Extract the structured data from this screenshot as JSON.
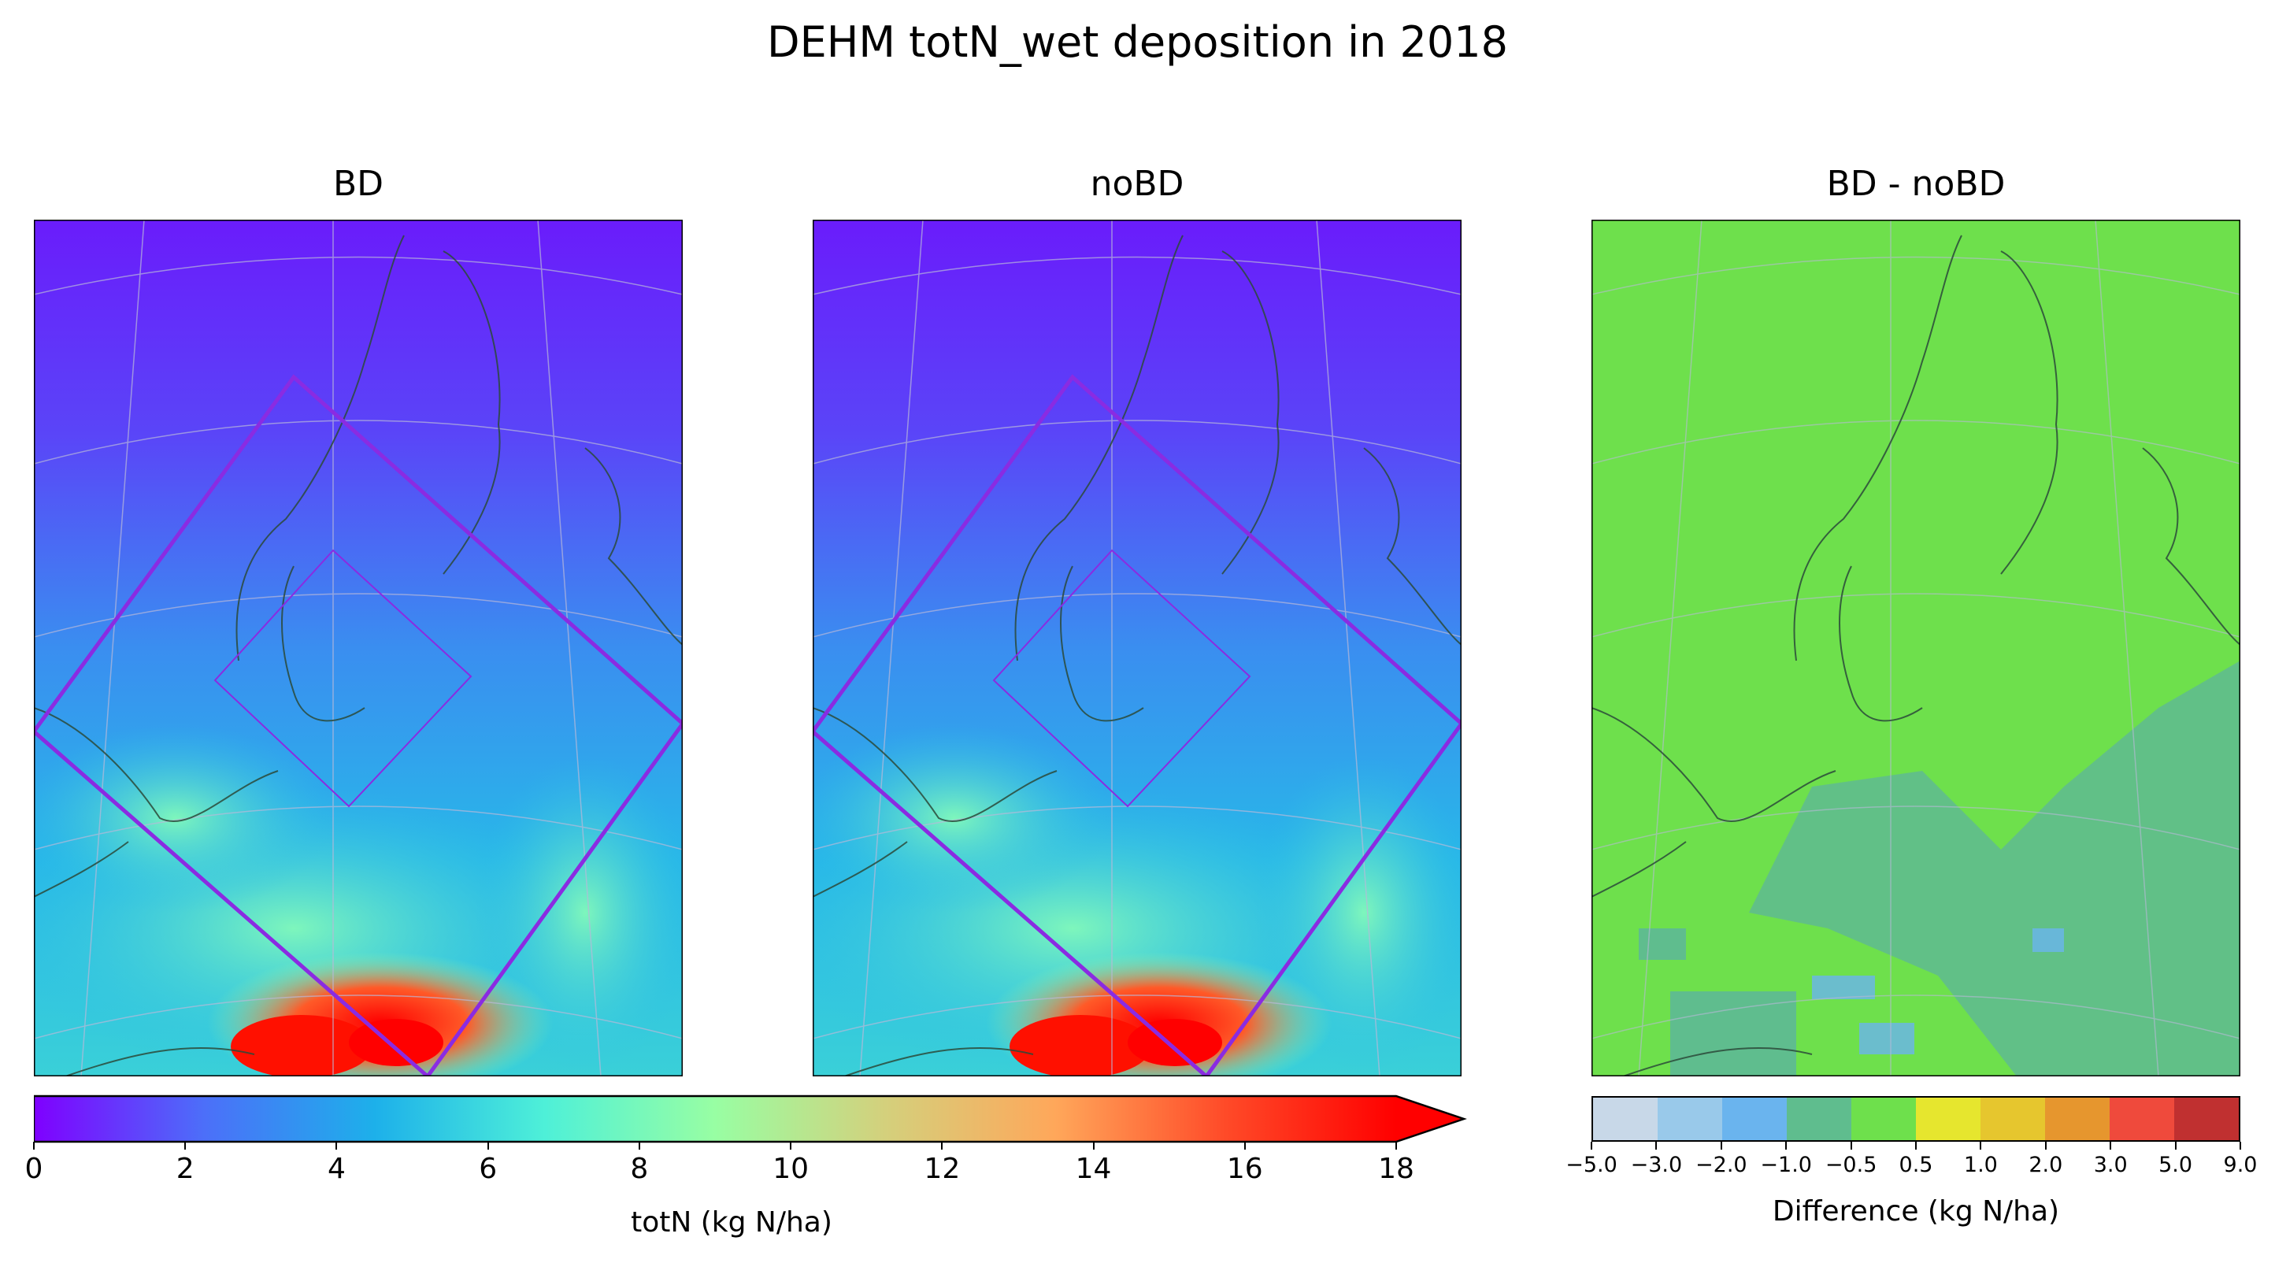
{
  "title": "DEHM totN_wet deposition in 2018",
  "panels": [
    {
      "title": "BD"
    },
    {
      "title": "noBD"
    },
    {
      "title": "BD - noBD"
    }
  ],
  "colorbar_main": {
    "label": "totN (kg N/ha)",
    "ticks": [
      "0",
      "2",
      "4",
      "6",
      "8",
      "10",
      "12",
      "14",
      "16",
      "18"
    ],
    "extend": "max"
  },
  "colorbar_diff": {
    "label": "Difference (kg N/ha)",
    "ticks": [
      "−5.0",
      "−3.0",
      "−2.0",
      "−1.0",
      "−0.5",
      "0.5",
      "1.0",
      "2.0",
      "3.0",
      "5.0",
      "9.0"
    ],
    "colors": [
      "#c8d8e8",
      "#99c9ea",
      "#6ab4ee",
      "#5fbd8e",
      "#6ee04c",
      "#e6e62e",
      "#e6c62e",
      "#e6962e",
      "#ef4a3c",
      "#c03030"
    ]
  },
  "colors": {
    "rainbow": [
      "#7f00ff",
      "#4c6ff9",
      "#1db0ea",
      "#4ef0d8",
      "#98fea3",
      "#d4d07c",
      "#ffa75a",
      "#ff4a28",
      "#ff0000"
    ],
    "land_outline": "#2b4a3a",
    "nest_box": "#8a2be2",
    "diff_neutral": "#6ee04c"
  }
}
